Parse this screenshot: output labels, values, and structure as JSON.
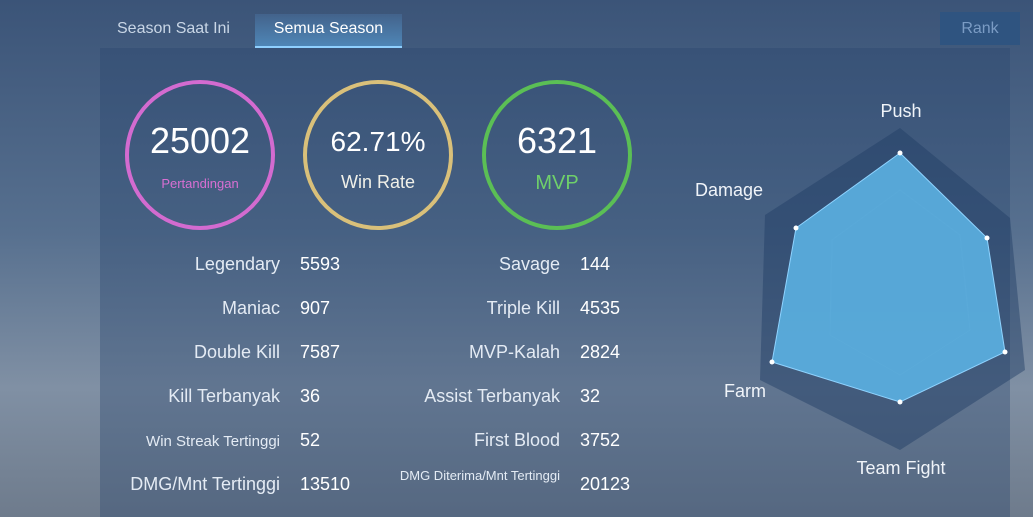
{
  "tabs": [
    "Season Saat Ini",
    "Semua Season"
  ],
  "rank_button": "Rank",
  "summary": [
    {
      "value": "25002",
      "label": "Pertandingan"
    },
    {
      "value": "62.71%",
      "label": "Win Rate"
    },
    {
      "value": "6321",
      "label": "MVP"
    }
  ],
  "stats": [
    [
      [
        "Legendary",
        "5593"
      ],
      [
        "Savage",
        "144"
      ]
    ],
    [
      [
        "Maniac",
        "907"
      ],
      [
        "Triple Kill",
        "4535"
      ]
    ],
    [
      [
        "Double Kill",
        "7587"
      ],
      [
        "MVP-Kalah",
        "2824"
      ]
    ],
    [
      [
        "Kill Terbanyak",
        "36"
      ],
      [
        "Assist Terbanyak",
        "32"
      ]
    ],
    [
      [
        "Win Streak Tertinggi",
        "52"
      ],
      [
        "First Blood",
        "3752"
      ]
    ],
    [
      [
        "DMG/Mnt Tertinggi",
        "13510"
      ],
      [
        "DMG Diterima/Mnt Tertinggi",
        "20123"
      ]
    ]
  ],
  "radar": {
    "labels": [
      "Push",
      "Damage",
      "Farm",
      "Team Fight"
    ]
  }
}
